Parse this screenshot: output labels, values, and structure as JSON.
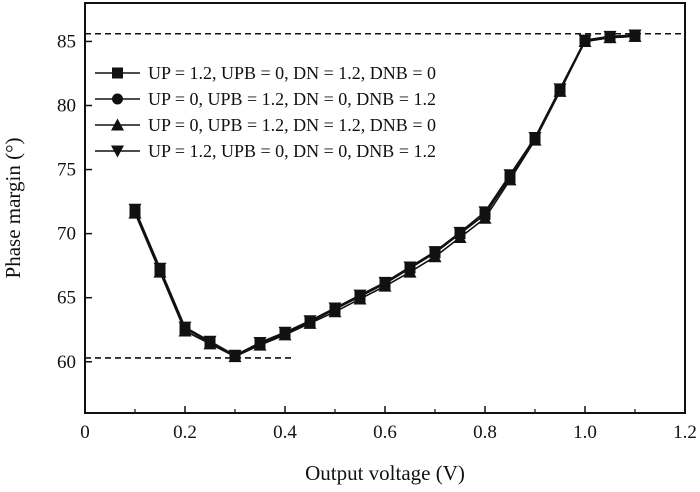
{
  "chart_data": {
    "type": "line",
    "xlabel": "Output voltage (V)",
    "ylabel": "Phase margin (°)",
    "xlim": [
      0,
      1.2
    ],
    "ylim": [
      56,
      88
    ],
    "x_ticks": [
      0,
      0.2,
      0.4,
      0.6,
      0.8,
      1.0,
      1.2
    ],
    "x_tick_labels": [
      "0",
      "0.2",
      "0.4",
      "0.6",
      "0.8",
      "1.0",
      "1.2"
    ],
    "y_ticks": [
      60,
      65,
      70,
      75,
      80,
      85
    ],
    "y_tick_labels": [
      "60",
      "65",
      "70",
      "75",
      "80",
      "85"
    ],
    "grid": false,
    "legend_position": "top-left",
    "reference_lines": [
      {
        "y": 85.6,
        "x_from": 0,
        "x_to": 1.2,
        "style": "dashed"
      },
      {
        "y": 60.3,
        "x_from": 0,
        "x_to": 0.42,
        "style": "dashed"
      }
    ],
    "x": [
      0.1,
      0.15,
      0.2,
      0.25,
      0.3,
      0.35,
      0.4,
      0.45,
      0.5,
      0.55,
      0.6,
      0.65,
      0.7,
      0.75,
      0.8,
      0.85,
      0.9,
      0.95,
      1.0,
      1.05,
      1.1
    ],
    "series": [
      {
        "name": "UP = 1.2, UPB = 0, DN = 1.2, DNB = 0",
        "marker": "square",
        "values": [
          71.7,
          67.1,
          62.6,
          61.5,
          60.5,
          61.4,
          62.2,
          63.1,
          64.1,
          65.1,
          66.1,
          67.3,
          68.5,
          70.0,
          71.5,
          74.4,
          77.4,
          81.2,
          85.0,
          85.3,
          85.4
        ]
      },
      {
        "name": "UP = 0, UPB = 1.2, DN = 0, DNB = 1.2",
        "marker": "circle",
        "values": [
          71.7,
          67.1,
          62.6,
          61.5,
          60.5,
          61.4,
          62.2,
          63.1,
          64.1,
          65.1,
          66.1,
          67.3,
          68.5,
          70.0,
          71.5,
          74.4,
          77.4,
          81.2,
          85.0,
          85.3,
          85.4
        ]
      },
      {
        "name": "UP = 0, UPB = 1.2, DN = 1.2, DNB = 0",
        "marker": "triangle-up",
        "values": [
          71.6,
          67.0,
          62.4,
          61.4,
          60.4,
          61.3,
          62.1,
          63.0,
          63.9,
          64.9,
          65.9,
          67.0,
          68.2,
          69.7,
          71.2,
          74.2,
          77.3,
          81.1,
          85.0,
          85.3,
          85.4
        ]
      },
      {
        "name": "UP = 1.2, UPB = 0, DN = 0, DNB = 1.2",
        "marker": "triangle-down",
        "values": [
          71.9,
          67.3,
          62.7,
          61.6,
          60.5,
          61.5,
          62.3,
          63.2,
          64.2,
          65.2,
          66.2,
          67.4,
          68.6,
          70.1,
          71.7,
          74.6,
          77.5,
          81.3,
          85.1,
          85.4,
          85.5
        ]
      }
    ]
  }
}
